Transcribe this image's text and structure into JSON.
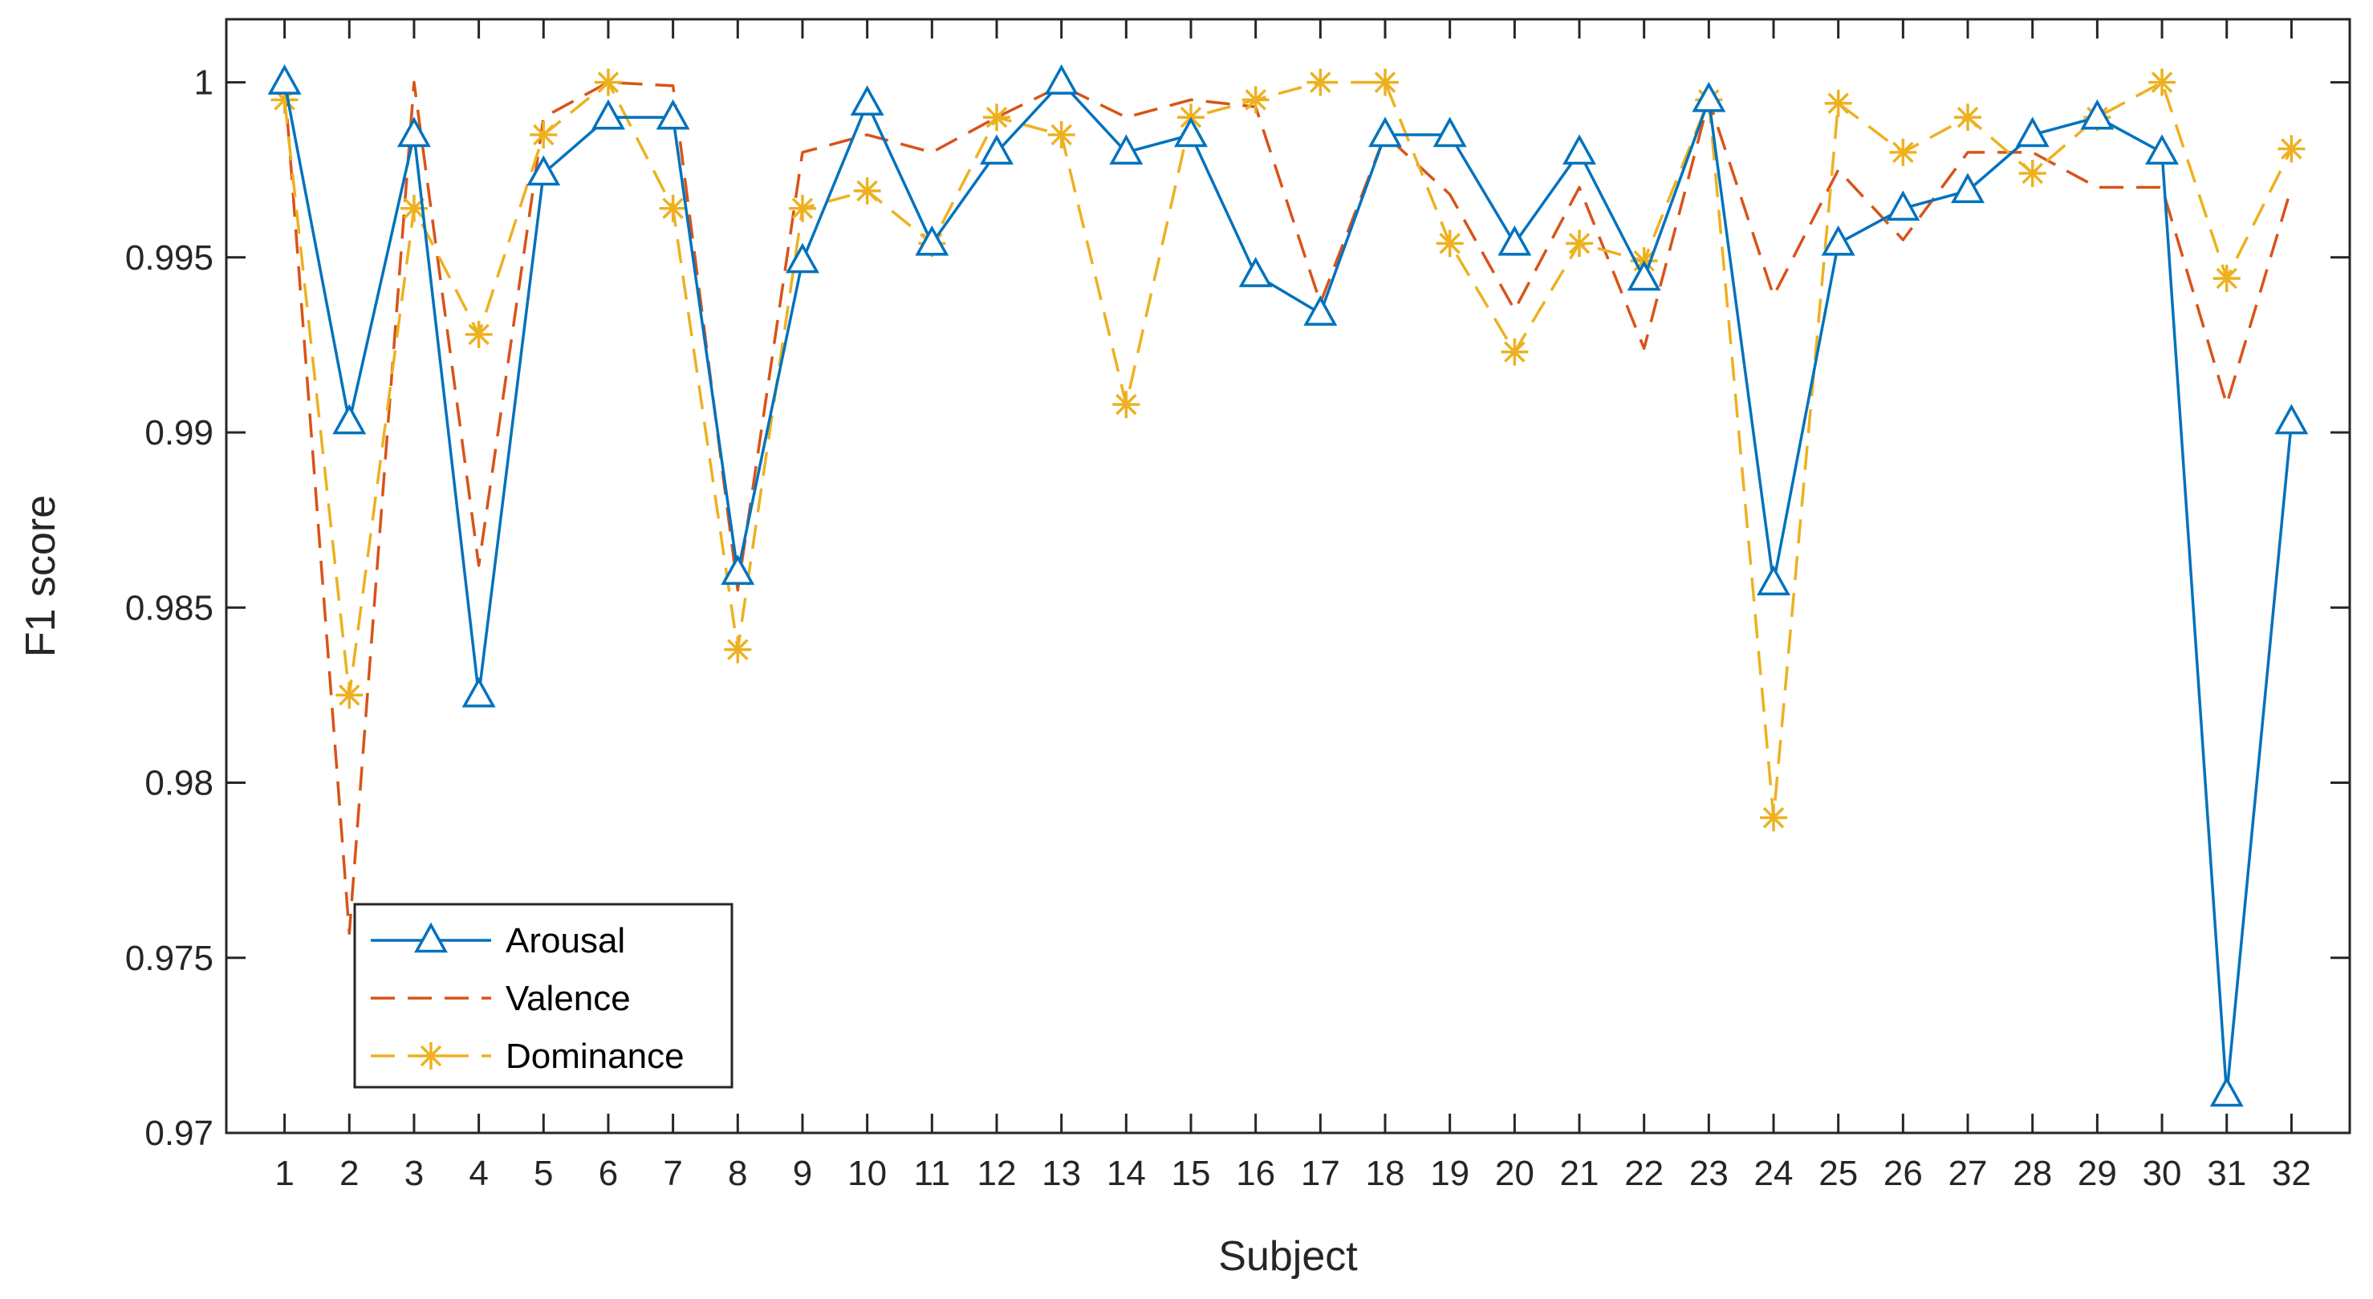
{
  "chart_data": {
    "type": "line",
    "title": "",
    "xlabel": "Subject",
    "ylabel": "F1 score",
    "x": [
      1,
      2,
      3,
      4,
      5,
      6,
      7,
      8,
      9,
      10,
      11,
      12,
      13,
      14,
      15,
      16,
      17,
      18,
      19,
      20,
      21,
      22,
      23,
      24,
      25,
      26,
      27,
      28,
      29,
      30,
      31,
      32
    ],
    "xlim": [
      0.1,
      32.9
    ],
    "ylim": [
      0.97,
      1.0018
    ],
    "yticks": [
      0.97,
      0.975,
      0.98,
      0.985,
      0.99,
      0.995,
      1
    ],
    "ytick_labels": [
      "0.97",
      "0.975",
      "0.98",
      "0.985",
      "0.99",
      "0.995",
      "1"
    ],
    "grid": false,
    "legend_location": "bottom-left",
    "series": [
      {
        "name": "Arousal",
        "color": "#0072BD",
        "line": "solid",
        "marker": "triangle",
        "values": [
          1.0,
          0.9903,
          0.9985,
          0.9825,
          0.9974,
          0.999,
          0.999,
          0.986,
          0.9949,
          0.9994,
          0.9954,
          0.998,
          1.0,
          0.998,
          0.9985,
          0.9945,
          0.9934,
          0.9985,
          0.9985,
          0.9954,
          0.998,
          0.9944,
          0.9995,
          0.9857,
          0.9954,
          0.9964,
          0.9969,
          0.9985,
          0.999,
          0.998,
          0.9711,
          0.9903
        ]
      },
      {
        "name": "Valence",
        "color": "#D95319",
        "line": "dashed",
        "marker": "none",
        "values": [
          1.0,
          0.9757,
          1.0,
          0.9862,
          0.999,
          1.0,
          0.9999,
          0.9855,
          0.998,
          0.9985,
          0.998,
          0.999,
          0.9999,
          0.999,
          0.9995,
          0.9993,
          0.9937,
          0.9985,
          0.9968,
          0.9935,
          0.997,
          0.9924,
          0.9995,
          0.9939,
          0.9975,
          0.9955,
          0.998,
          0.998,
          0.997,
          0.997,
          0.9908,
          0.997
        ]
      },
      {
        "name": "Dominance",
        "color": "#EDB120",
        "line": "dashed",
        "marker": "star",
        "values": [
          0.9995,
          0.9825,
          0.9964,
          0.9928,
          0.9985,
          1.0,
          0.9964,
          0.9838,
          0.9964,
          0.9969,
          0.9954,
          0.999,
          0.9985,
          0.9908,
          0.999,
          0.9995,
          1.0,
          1.0,
          0.9954,
          0.9923,
          0.9954,
          0.9949,
          0.9995,
          0.979,
          0.9994,
          0.998,
          0.999,
          0.9974,
          0.999,
          1.0,
          0.9944,
          0.9981
        ]
      }
    ]
  }
}
